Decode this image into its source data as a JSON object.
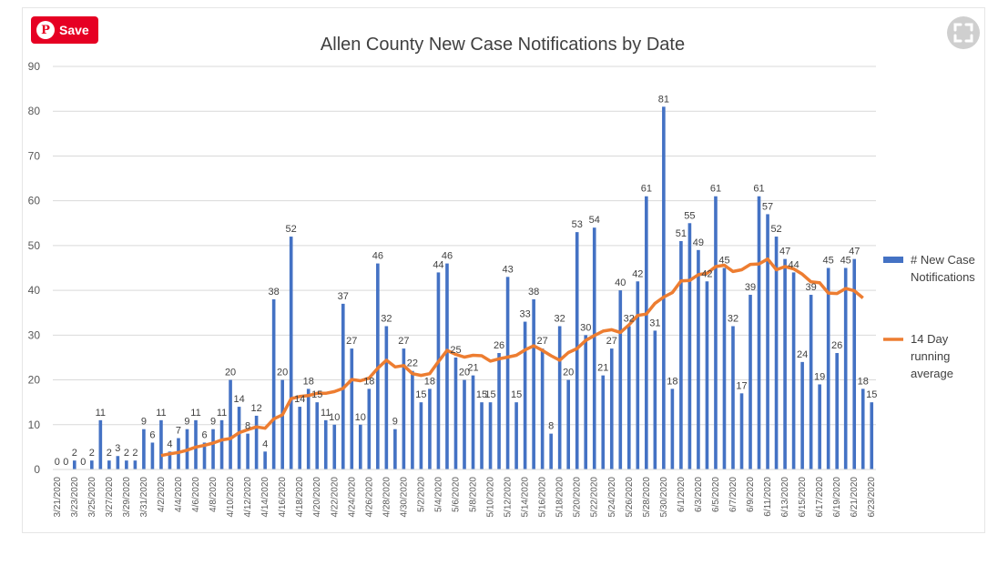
{
  "save_button": {
    "label": "Save",
    "icon": "pinterest-icon"
  },
  "expand_button": {
    "icon": "expand-icon"
  },
  "colors": {
    "bar": "#4472c4",
    "line": "#ed7d31",
    "grid": "#d9d9d9",
    "save": "#e60023"
  },
  "chart_data": {
    "type": "bar",
    "title": "Allen County New Case Notifications by Date",
    "ylim": [
      0,
      90
    ],
    "yticks": [
      0,
      10,
      20,
      30,
      40,
      50,
      60,
      70,
      80,
      90
    ],
    "grid": true,
    "legend_position": "right",
    "x": [
      "3/21/2020",
      "3/22/2020",
      "3/23/2020",
      "3/24/2020",
      "3/25/2020",
      "3/26/2020",
      "3/27/2020",
      "3/28/2020",
      "3/29/2020",
      "3/30/2020",
      "3/31/2020",
      "4/1/2020",
      "4/2/2020",
      "4/3/2020",
      "4/4/2020",
      "4/5/2020",
      "4/6/2020",
      "4/7/2020",
      "4/8/2020",
      "4/9/2020",
      "4/10/2020",
      "4/11/2020",
      "4/12/2020",
      "4/13/2020",
      "4/14/2020",
      "4/15/2020",
      "4/16/2020",
      "4/17/2020",
      "4/18/2020",
      "4/19/2020",
      "4/20/2020",
      "4/21/2020",
      "4/22/2020",
      "4/23/2020",
      "4/24/2020",
      "4/25/2020",
      "4/26/2020",
      "4/27/2020",
      "4/28/2020",
      "4/29/2020",
      "4/30/2020",
      "5/1/2020",
      "5/2/2020",
      "5/3/2020",
      "5/4/2020",
      "5/5/2020",
      "5/6/2020",
      "5/7/2020",
      "5/8/2020",
      "5/9/2020",
      "5/10/2020",
      "5/11/2020",
      "5/12/2020",
      "5/13/2020",
      "5/14/2020",
      "5/15/2020",
      "5/16/2020",
      "5/17/2020",
      "5/18/2020",
      "5/19/2020",
      "5/20/2020",
      "5/21/2020",
      "5/22/2020",
      "5/23/2020",
      "5/24/2020",
      "5/25/2020",
      "5/26/2020",
      "5/27/2020",
      "5/28/2020",
      "5/29/2020",
      "5/30/2020",
      "5/31/2020",
      "6/1/2020",
      "6/2/2020",
      "6/3/2020",
      "6/4/2020",
      "6/5/2020",
      "6/6/2020",
      "6/7/2020",
      "6/8/2020",
      "6/9/2020",
      "6/10/2020",
      "6/11/2020",
      "6/12/2020",
      "6/13/2020",
      "6/14/2020",
      "6/15/2020",
      "6/16/2020",
      "6/17/2020",
      "6/18/2020",
      "6/19/2020",
      "6/20/2020",
      "6/21/2020",
      "6/22/2020",
      "6/23/2020"
    ],
    "x_tick_labels": [
      "3/21/2020",
      "3/23/2020",
      "3/25/2020",
      "3/27/2020",
      "3/29/2020",
      "3/31/2020",
      "4/2/2020",
      "4/4/2020",
      "4/6/2020",
      "4/8/2020",
      "4/10/2020",
      "4/12/2020",
      "4/14/2020",
      "4/16/2020",
      "4/18/2020",
      "4/20/2020",
      "4/22/2020",
      "4/24/2020",
      "4/26/2020",
      "4/28/2020",
      "4/30/2020",
      "5/2/2020",
      "5/4/2020",
      "5/6/2020",
      "5/8/2020",
      "5/10/2020",
      "5/12/2020",
      "5/14/2020",
      "5/16/2020",
      "5/18/2020",
      "5/20/2020",
      "5/22/2020",
      "5/24/2020",
      "5/26/2020",
      "5/28/2020",
      "5/30/2020",
      "6/1/2020",
      "6/3/2020",
      "6/5/2020",
      "6/7/2020",
      "6/9/2020",
      "6/11/2020",
      "6/13/2020",
      "6/15/2020",
      "6/17/2020",
      "6/19/2020",
      "6/21/2020",
      "6/23/2020"
    ],
    "series": [
      {
        "name": "# New Case Notifications",
        "type": "bar",
        "values": [
          0,
          0,
          2,
          0,
          2,
          11,
          2,
          3,
          2,
          2,
          9,
          6,
          11,
          4,
          7,
          9,
          11,
          6,
          9,
          11,
          20,
          14,
          8,
          12,
          4,
          38,
          20,
          52,
          14,
          18,
          15,
          11,
          10,
          37,
          27,
          10,
          18,
          46,
          32,
          9,
          27,
          22,
          15,
          18,
          44,
          46,
          25,
          20,
          21,
          15,
          15,
          26,
          43,
          15,
          33,
          38,
          27,
          8,
          32,
          20,
          53,
          30,
          54,
          21,
          27,
          40,
          32,
          42,
          61,
          31,
          81,
          18,
          51,
          55,
          49,
          42,
          61,
          45,
          32,
          17,
          39,
          61,
          57,
          52,
          47,
          44,
          24,
          39,
          19,
          45,
          26,
          45,
          47,
          18,
          15
        ]
      },
      {
        "name": "14 Day running average",
        "type": "line",
        "values": [
          null,
          null,
          null,
          null,
          null,
          null,
          null,
          null,
          null,
          null,
          null,
          null,
          3.1,
          3.5,
          3.8,
          4.3,
          5.0,
          5.4,
          5.9,
          6.6,
          6.9,
          8.2,
          8.9,
          9.5,
          9.2,
          11.3,
          12.2,
          15.8,
          16.3,
          16.5,
          17.0,
          17.0,
          17.4,
          18.1,
          20.1,
          19.8,
          20.4,
          22.6,
          24.4,
          22.9,
          23.2,
          21.4,
          21.0,
          21.4,
          24.1,
          26.6,
          25.7,
          25.1,
          25.5,
          25.4,
          24.2,
          24.7,
          25.1,
          25.5,
          26.7,
          27.6,
          26.6,
          25.4,
          24.4,
          26.1,
          27.0,
          28.8,
          29.9,
          30.9,
          31.2,
          30.6,
          32.3,
          34.4,
          34.7,
          37.1,
          38.5,
          39.5,
          42.1,
          42.2,
          43.5,
          43.8,
          45.3,
          45.6,
          44.2,
          44.6,
          45.8,
          45.9,
          47.0,
          44.6,
          45.3,
          44.8,
          43.6,
          41.9,
          41.7,
          39.4,
          39.3,
          40.4,
          39.9,
          38.3,
          null
        ]
      }
    ],
    "legend": [
      {
        "name_lines": [
          "# New Case",
          "Notifications"
        ],
        "symbol": "bar"
      },
      {
        "name_lines": [
          "14 Day",
          "running",
          "average"
        ],
        "symbol": "line"
      }
    ]
  }
}
